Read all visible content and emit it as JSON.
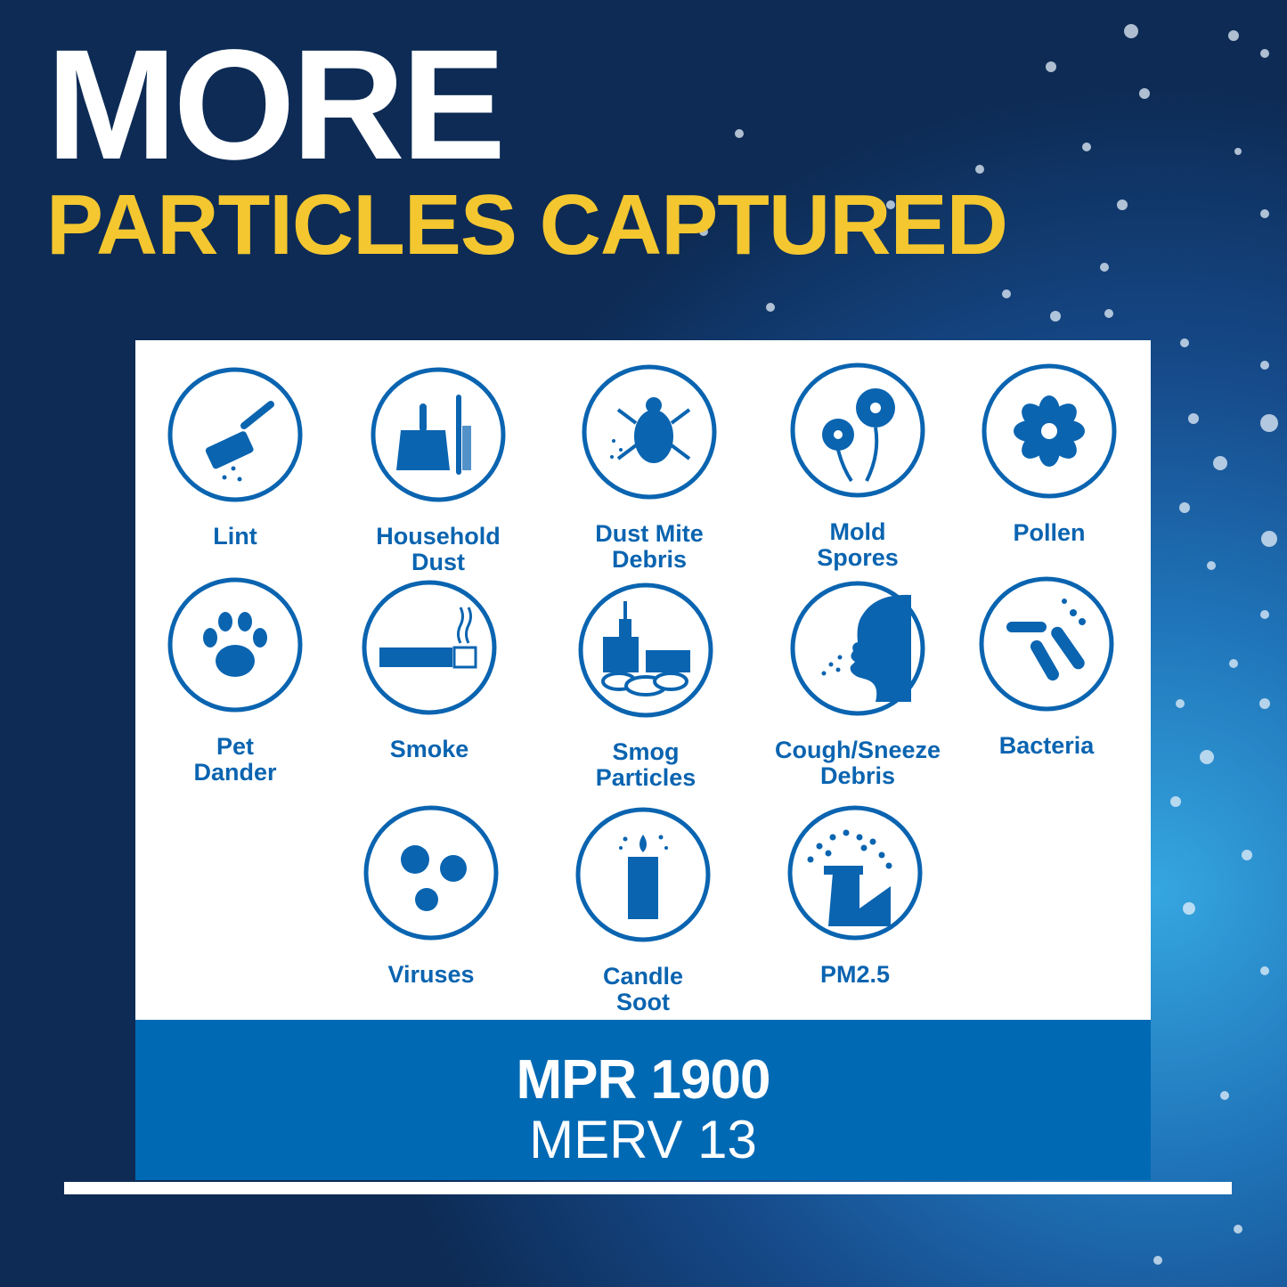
{
  "headline": {
    "line1": "MORE",
    "line2": "PARTICLES CAPTURED"
  },
  "colors": {
    "headline_accent": "#f4c730",
    "icon_blue": "#0a64b0",
    "band": "#0069b4"
  },
  "particles": [
    {
      "label": "Lint",
      "icon": "lint-roller-icon"
    },
    {
      "label": "Household\nDust",
      "icon": "dustpan-brush-icon"
    },
    {
      "label": "Dust Mite\nDebris",
      "icon": "dust-mite-icon"
    },
    {
      "label": "Mold\nSpores",
      "icon": "mold-flowers-icon"
    },
    {
      "label": "Pollen",
      "icon": "pollen-flower-icon"
    },
    {
      "label": "Pet\nDander",
      "icon": "paw-print-icon"
    },
    {
      "label": "Smoke",
      "icon": "cigarette-icon"
    },
    {
      "label": "Smog\nParticles",
      "icon": "smog-city-icon"
    },
    {
      "label": "Cough/Sneeze\nDebris",
      "icon": "sneeze-face-icon"
    },
    {
      "label": "Bacteria",
      "icon": "bacteria-icon"
    },
    {
      "label": "Viruses",
      "icon": "virus-icon"
    },
    {
      "label": "Candle\nSoot",
      "icon": "candle-icon"
    },
    {
      "label": "PM2.5",
      "icon": "smokestack-icon"
    }
  ],
  "rating": {
    "mpr": "MPR 1900",
    "merv": "MERV 13"
  }
}
